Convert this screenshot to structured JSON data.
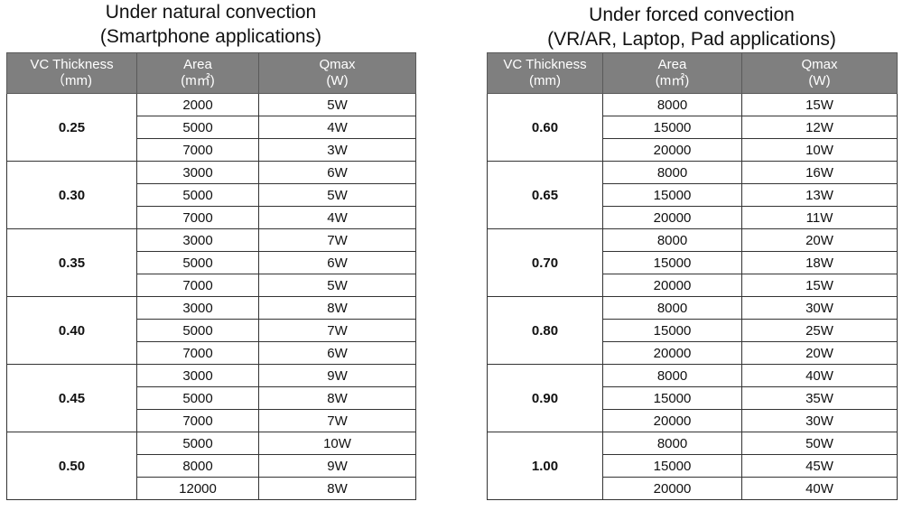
{
  "left": {
    "title_line1": "Under natural convection",
    "title_line2": "(Smartphone applications)",
    "headers": {
      "thickness": [
        "VC Thickness",
        "（mm)"
      ],
      "area": [
        "Area",
        "(m㎡)"
      ],
      "qmax": [
        "Qmax",
        "(W)"
      ]
    },
    "groups": [
      {
        "thickness": "0.25",
        "rows": [
          [
            "2000",
            "5W"
          ],
          [
            "5000",
            "4W"
          ],
          [
            "7000",
            "3W"
          ]
        ]
      },
      {
        "thickness": "0.30",
        "rows": [
          [
            "3000",
            "6W"
          ],
          [
            "5000",
            "5W"
          ],
          [
            "7000",
            "4W"
          ]
        ]
      },
      {
        "thickness": "0.35",
        "rows": [
          [
            "3000",
            "7W"
          ],
          [
            "5000",
            "6W"
          ],
          [
            "7000",
            "5W"
          ]
        ]
      },
      {
        "thickness": "0.40",
        "rows": [
          [
            "3000",
            "8W"
          ],
          [
            "5000",
            "7W"
          ],
          [
            "7000",
            "6W"
          ]
        ]
      },
      {
        "thickness": "0.45",
        "rows": [
          [
            "3000",
            "9W"
          ],
          [
            "5000",
            "8W"
          ],
          [
            "7000",
            "7W"
          ]
        ]
      },
      {
        "thickness": "0.50",
        "rows": [
          [
            "5000",
            "10W"
          ],
          [
            "8000",
            "9W"
          ],
          [
            "12000",
            "8W"
          ]
        ]
      }
    ]
  },
  "right": {
    "title_line1": "Under forced convection",
    "title_line2": "(VR/AR, Laptop, Pad applications)",
    "headers": {
      "thickness": [
        "VC Thickness",
        "(mm)"
      ],
      "area": [
        "Area",
        "(m㎡)"
      ],
      "qmax": [
        "Qmax",
        "(W)"
      ]
    },
    "groups": [
      {
        "thickness": "0.60",
        "rows": [
          [
            "8000",
            "15W"
          ],
          [
            "15000",
            "12W"
          ],
          [
            "20000",
            "10W"
          ]
        ]
      },
      {
        "thickness": "0.65",
        "rows": [
          [
            "8000",
            "16W"
          ],
          [
            "15000",
            "13W"
          ],
          [
            "20000",
            "11W"
          ]
        ]
      },
      {
        "thickness": "0.70",
        "rows": [
          [
            "8000",
            "20W"
          ],
          [
            "15000",
            "18W"
          ],
          [
            "20000",
            "15W"
          ]
        ]
      },
      {
        "thickness": "0.80",
        "rows": [
          [
            "8000",
            "30W"
          ],
          [
            "15000",
            "25W"
          ],
          [
            "20000",
            "20W"
          ]
        ]
      },
      {
        "thickness": "0.90",
        "rows": [
          [
            "8000",
            "40W"
          ],
          [
            "15000",
            "35W"
          ],
          [
            "20000",
            "30W"
          ]
        ]
      },
      {
        "thickness": "1.00",
        "rows": [
          [
            "8000",
            "50W"
          ],
          [
            "15000",
            "45W"
          ],
          [
            "20000",
            "40W"
          ]
        ]
      }
    ]
  }
}
